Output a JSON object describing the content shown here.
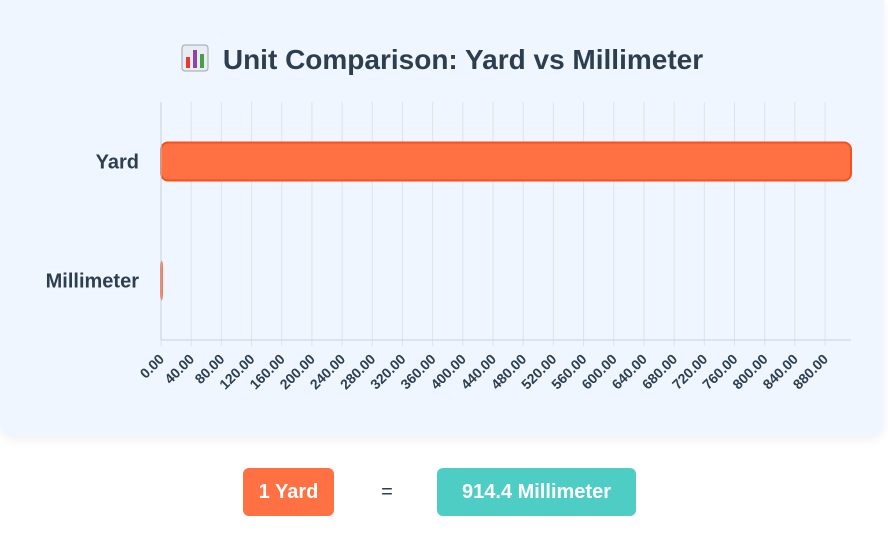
{
  "chart_data": {
    "type": "bar",
    "orientation": "horizontal",
    "title": "Unit Comparison: Yard vs Millimeter",
    "title_icon": "bar-chart-icon",
    "categories": [
      "Yard",
      "Millimeter"
    ],
    "values": [
      914.4,
      1
    ],
    "xlim": [
      0,
      914.4
    ],
    "xticks": [
      "0.00",
      "40.00",
      "80.00",
      "120.00",
      "160.00",
      "200.00",
      "240.00",
      "280.00",
      "320.00",
      "360.00",
      "400.00",
      "440.00",
      "480.00",
      "520.00",
      "560.00",
      "600.00",
      "640.00",
      "680.00",
      "720.00",
      "760.00",
      "800.00",
      "840.00",
      "880.00"
    ],
    "grid": true,
    "legend": "none",
    "bar_color": "#ff7043",
    "bar_border_color": "#f4511e"
  },
  "result": {
    "from_label": "1 Yard",
    "equals": "=",
    "to_label": "914.4 Millimeter",
    "from_color": "#ff7043",
    "to_color": "#4ecdc4"
  }
}
